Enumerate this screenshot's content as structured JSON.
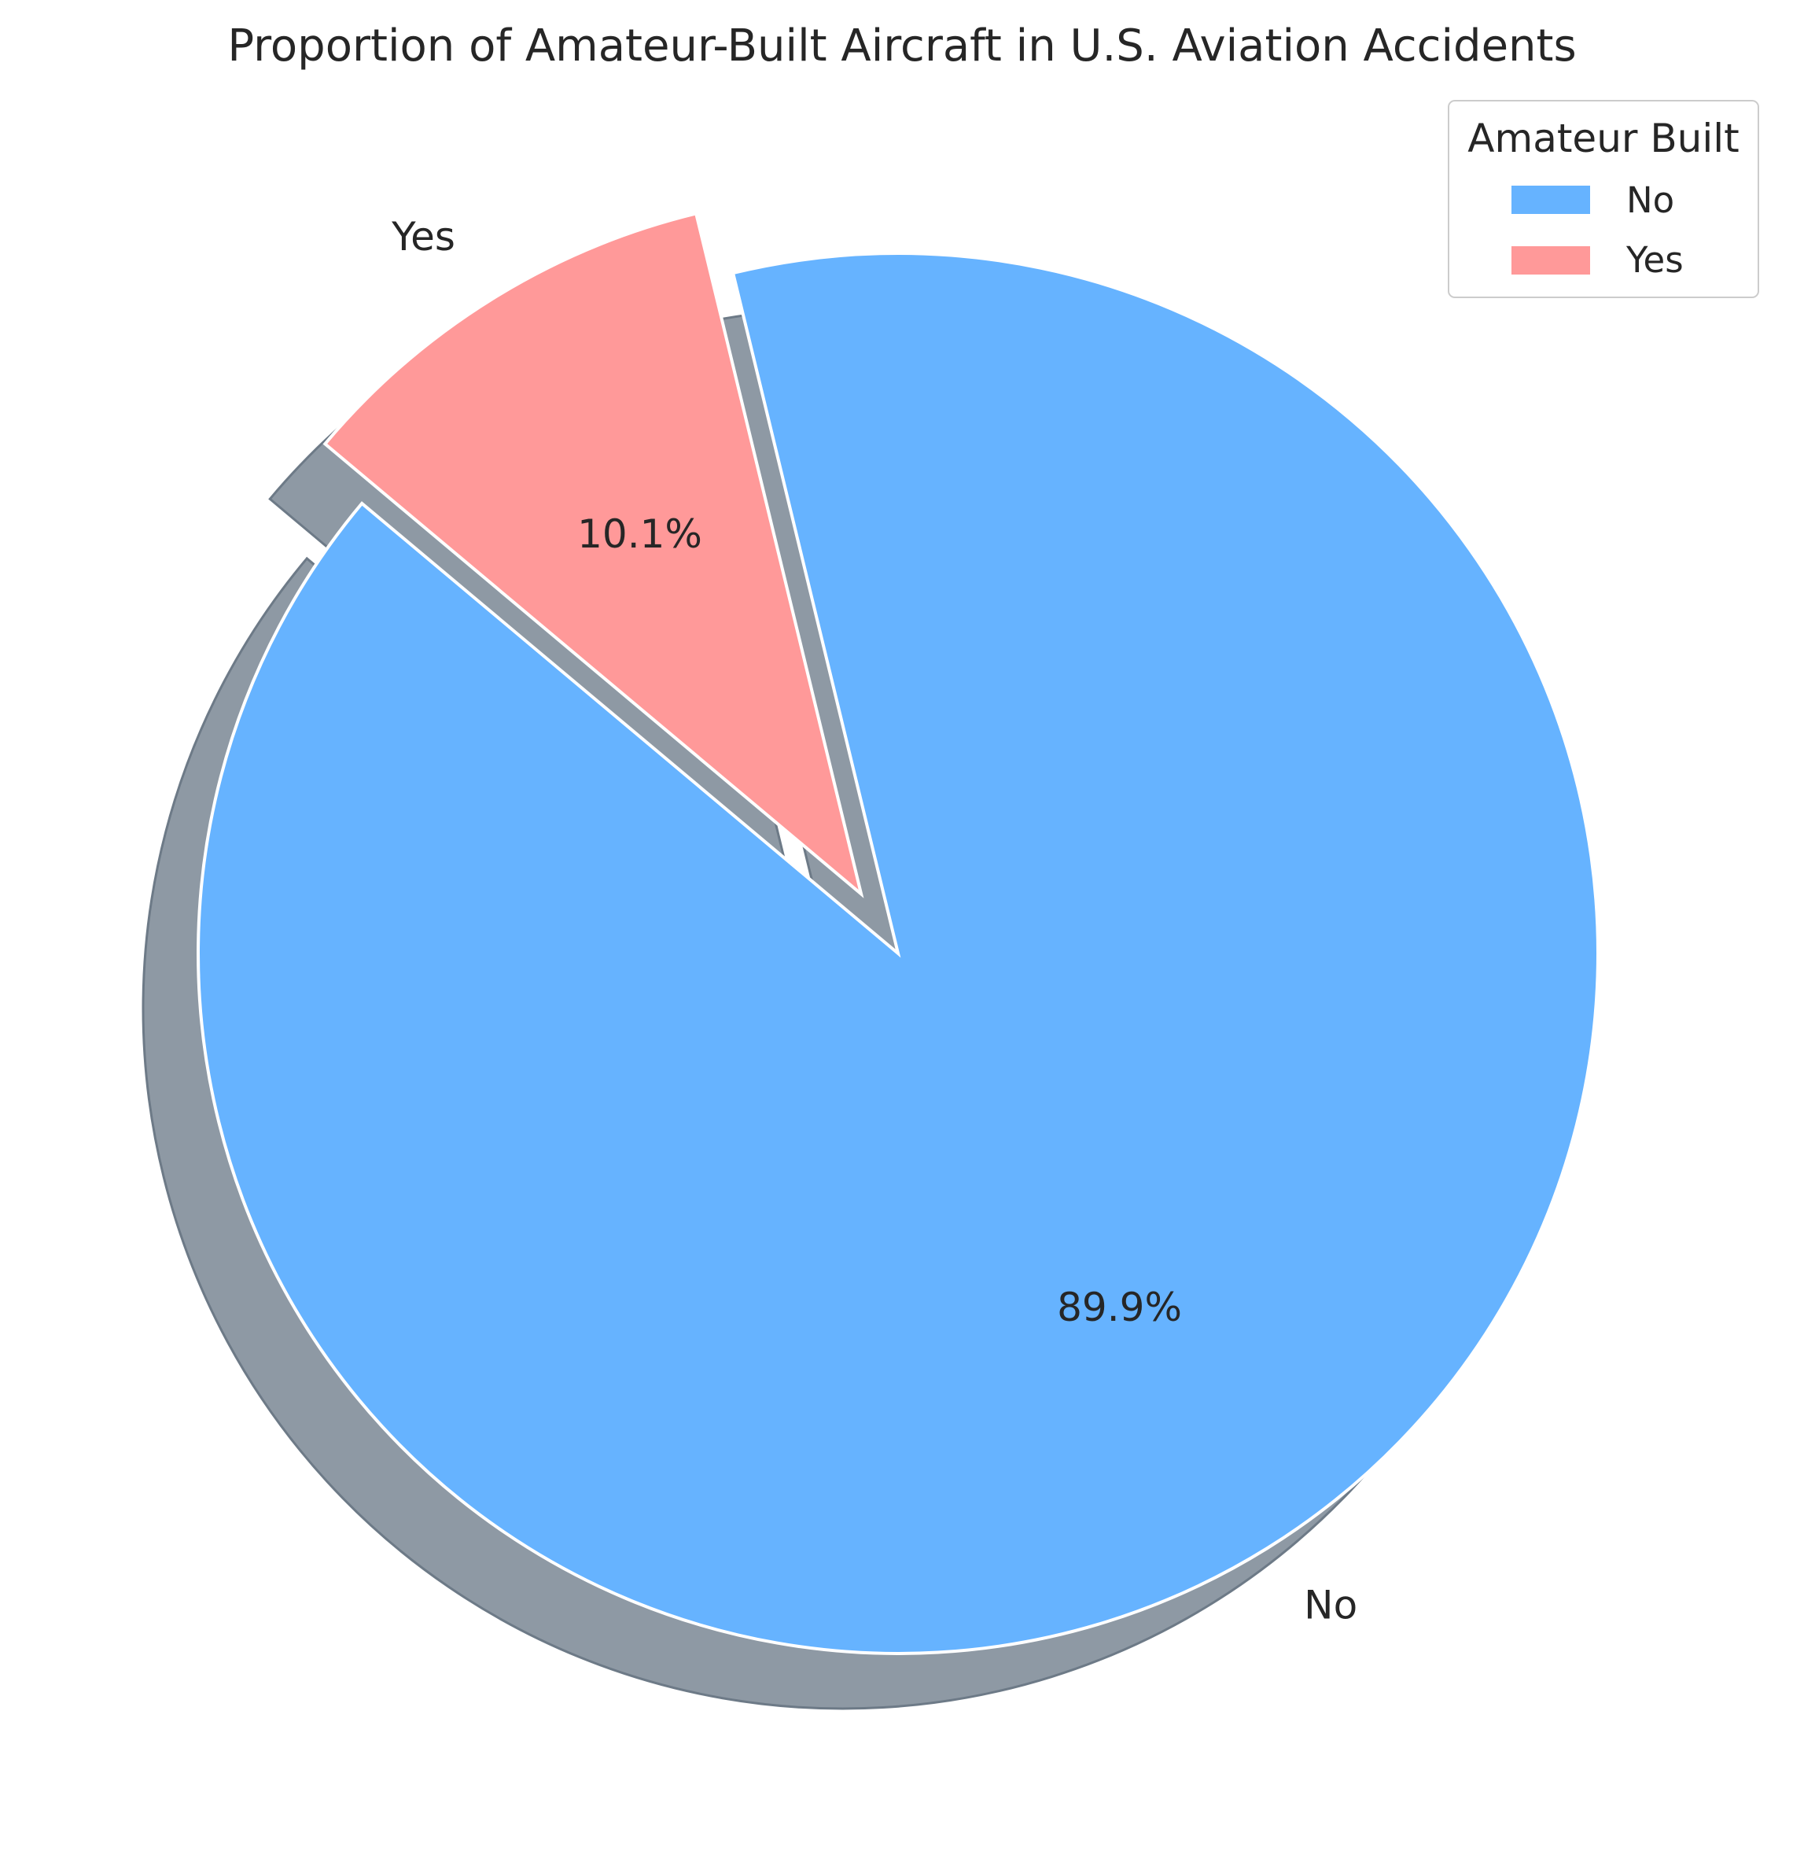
{
  "chart_data": {
    "type": "pie",
    "title": "Proportion of Amateur-Built Aircraft in U.S. Aviation Accidents",
    "slices": [
      {
        "label": "No",
        "value": 89.9,
        "pct_label": "89.9%",
        "color": "#66b3ff"
      },
      {
        "label": "Yes",
        "value": 10.1,
        "pct_label": "10.1%",
        "color": "#ff9999"
      }
    ],
    "exploded": "Yes",
    "shadow": true,
    "start_angle_deg": 140,
    "legend": {
      "title": "Amateur Built",
      "entries": [
        "No",
        "Yes"
      ],
      "location": "upper right"
    }
  }
}
